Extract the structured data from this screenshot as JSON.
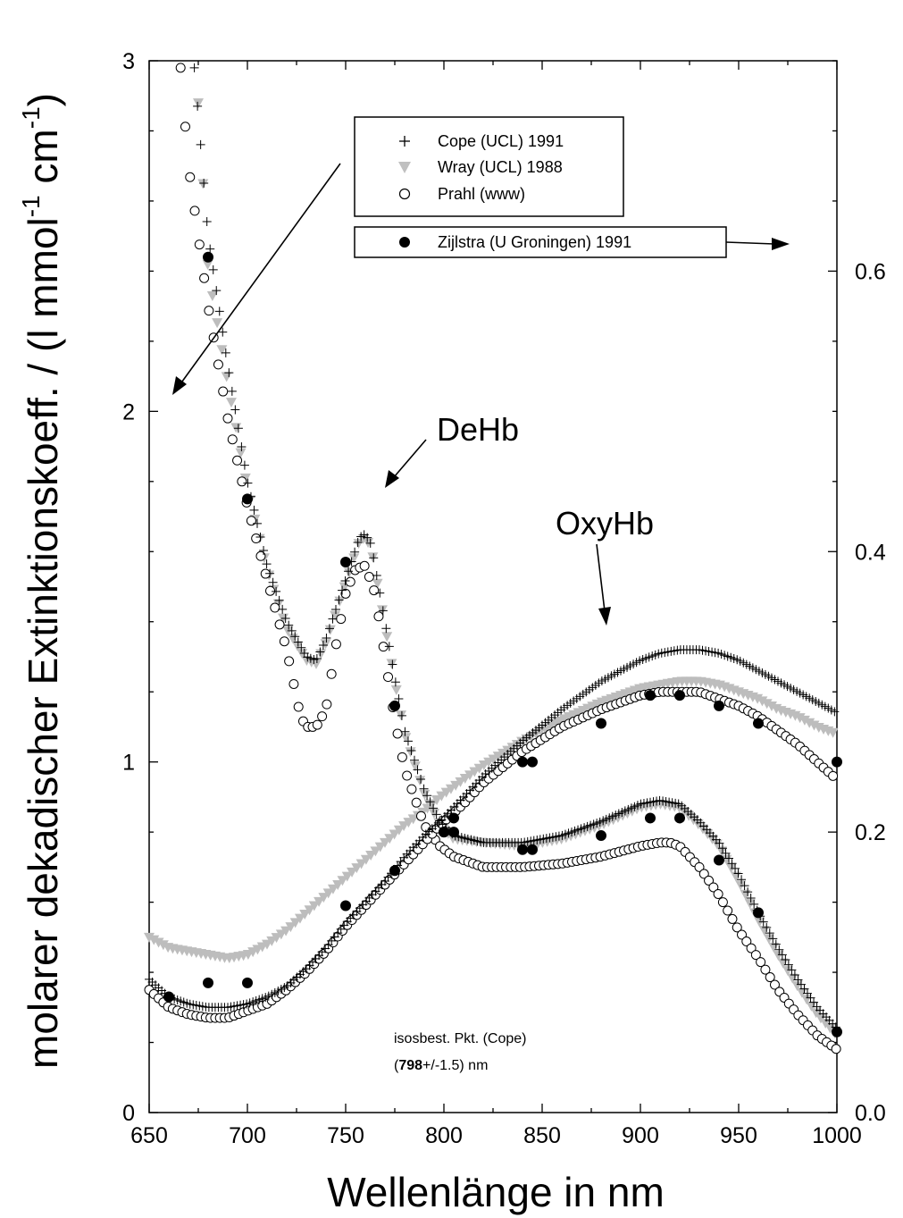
{
  "chart_data": {
    "type": "scatter",
    "xlabel": "Wellenlänge in nm",
    "ylabel_main": "molarer dekadischer Extinktionskoeff. / (l mmol",
    "ylabel_sup1": "-1",
    "ylabel_mid": " cm",
    "ylabel_sup2": "-1",
    "ylabel_end": ")",
    "xlim": [
      650,
      1000
    ],
    "ylim_left": [
      0,
      3
    ],
    "ylim_right": [
      0,
      0.75
    ],
    "x_ticks": [
      650,
      700,
      750,
      800,
      850,
      900,
      950,
      1000
    ],
    "x_tick_labels": [
      "650",
      "700",
      "750",
      "800",
      "850",
      "900",
      "950",
      "1000"
    ],
    "y_left_ticks": [
      0,
      1,
      2,
      3
    ],
    "y_left_tick_labels": [
      "0",
      "1",
      "2",
      "3"
    ],
    "y_right_ticks": [
      0.0,
      0.2,
      0.4,
      0.6
    ],
    "y_right_tick_labels": [
      "0.0",
      "0.2",
      "0.4",
      "0.6"
    ],
    "legend_left": [
      {
        "name": "Cope (UCL) 1991",
        "marker": "plus"
      },
      {
        "name": "Wray (UCL) 1988",
        "marker": "triangle"
      },
      {
        "name": "Prahl (www)",
        "marker": "circle"
      }
    ],
    "legend_right": [
      {
        "name": "Zijlstra (U Groningen) 1991",
        "marker": "filled-circle"
      }
    ],
    "annotations": {
      "dehb": "DeHb",
      "oxyhb": "OxyHb",
      "isos_line1": "isosbest. Pkt. (Cope)",
      "isos_line2_open": "(",
      "isos_line2_bold": "798",
      "isos_line2_rest": "+/-1.5) nm"
    },
    "series": [
      {
        "name": "Cope (UCL) 1991",
        "axis": "left",
        "marker": "plus",
        "curves": [
          {
            "label": "DeHb",
            "x": [
              673,
              680,
              690,
              700,
              710,
              720,
              730,
              735,
              740,
              750,
              757,
              760,
              763,
              770,
              775,
              780,
              790,
              798,
              805,
              820,
              840,
              860,
              880,
              900,
              910,
              920,
              930,
              940,
              950,
              960,
              970,
              980,
              990,
              1000
            ],
            "y": [
              2.98,
              2.5,
              2.13,
              1.8,
              1.56,
              1.4,
              1.3,
              1.29,
              1.35,
              1.52,
              1.64,
              1.65,
              1.62,
              1.4,
              1.24,
              1.09,
              0.92,
              0.83,
              0.79,
              0.77,
              0.77,
              0.79,
              0.83,
              0.88,
              0.89,
              0.88,
              0.83,
              0.77,
              0.68,
              0.57,
              0.47,
              0.38,
              0.3,
              0.24
            ]
          },
          {
            "label": "OxyHb",
            "x": [
              650,
              660,
              670,
              680,
              690,
              700,
              710,
              720,
              730,
              740,
              750,
              760,
              770,
              780,
              790,
              798,
              810,
              820,
              840,
              860,
              880,
              900,
              910,
              920,
              930,
              940,
              950,
              960,
              970,
              980,
              990,
              1000
            ],
            "y": [
              0.38,
              0.33,
              0.31,
              0.3,
              0.3,
              0.31,
              0.33,
              0.36,
              0.41,
              0.47,
              0.54,
              0.6,
              0.66,
              0.73,
              0.79,
              0.83,
              0.9,
              0.96,
              1.06,
              1.15,
              1.23,
              1.29,
              1.31,
              1.32,
              1.32,
              1.31,
              1.29,
              1.26,
              1.23,
              1.2,
              1.17,
              1.14
            ]
          }
        ]
      },
      {
        "name": "Wray (UCL) 1988",
        "axis": "left",
        "marker": "triangle",
        "curves": [
          {
            "label": "DeHb",
            "x": [
              675,
              680,
              690,
              700,
              710,
              720,
              730,
              735,
              740,
              750,
              757,
              760,
              763,
              770,
              775,
              780,
              790,
              798,
              805,
              820,
              840,
              860,
              880,
              900,
              910,
              920,
              930,
              940,
              950,
              960,
              970,
              980,
              990,
              1000
            ],
            "y": [
              2.88,
              2.4,
              2.08,
              1.78,
              1.55,
              1.38,
              1.29,
              1.28,
              1.34,
              1.51,
              1.63,
              1.64,
              1.61,
              1.39,
              1.23,
              1.08,
              0.91,
              0.82,
              0.78,
              0.77,
              0.76,
              0.78,
              0.82,
              0.87,
              0.88,
              0.87,
              0.82,
              0.76,
              0.66,
              0.55,
              0.45,
              0.36,
              0.28,
              0.22
            ]
          },
          {
            "label": "OxyHb",
            "x": [
              650,
              660,
              670,
              680,
              690,
              700,
              710,
              720,
              730,
              740,
              750,
              760,
              770,
              780,
              790,
              798,
              810,
              820,
              840,
              860,
              880,
              900,
              910,
              920,
              930,
              940,
              950,
              960,
              970,
              980,
              990,
              1000
            ],
            "y": [
              0.5,
              0.47,
              0.46,
              0.45,
              0.44,
              0.45,
              0.48,
              0.52,
              0.57,
              0.62,
              0.67,
              0.72,
              0.77,
              0.82,
              0.86,
              0.9,
              0.95,
              0.99,
              1.06,
              1.12,
              1.17,
              1.21,
              1.22,
              1.23,
              1.23,
              1.22,
              1.2,
              1.18,
              1.15,
              1.13,
              1.1,
              1.08
            ]
          }
        ]
      },
      {
        "name": "Prahl (www)",
        "axis": "left",
        "marker": "circle",
        "curves": [
          {
            "label": "DeHb",
            "x": [
              666,
              670,
              680,
              690,
              700,
              710,
              720,
              727,
              730,
              735,
              740,
              745,
              750,
              755,
              760,
              765,
              770,
              775,
              780,
              790,
              798,
              805,
              820,
              840,
              860,
              880,
              900,
              910,
              915,
              920,
              930,
              940,
              950,
              960,
              970,
              980,
              990,
              1000
            ],
            "y": [
              2.98,
              2.7,
              2.3,
              1.98,
              1.73,
              1.52,
              1.32,
              1.13,
              1.1,
              1.1,
              1.15,
              1.33,
              1.48,
              1.55,
              1.56,
              1.48,
              1.3,
              1.12,
              0.98,
              0.82,
              0.76,
              0.73,
              0.7,
              0.7,
              0.71,
              0.73,
              0.76,
              0.77,
              0.77,
              0.76,
              0.7,
              0.62,
              0.52,
              0.44,
              0.35,
              0.28,
              0.22,
              0.18
            ]
          },
          {
            "label": "OxyHb",
            "x": [
              650,
              660,
              670,
              680,
              690,
              700,
              710,
              720,
              730,
              740,
              750,
              760,
              770,
              780,
              790,
              798,
              810,
              820,
              840,
              860,
              880,
              900,
              910,
              920,
              930,
              940,
              950,
              960,
              970,
              980,
              990,
              1000
            ],
            "y": [
              0.35,
              0.3,
              0.28,
              0.27,
              0.27,
              0.29,
              0.31,
              0.35,
              0.4,
              0.46,
              0.53,
              0.59,
              0.65,
              0.71,
              0.77,
              0.82,
              0.88,
              0.94,
              1.03,
              1.1,
              1.15,
              1.19,
              1.2,
              1.2,
              1.2,
              1.18,
              1.16,
              1.13,
              1.09,
              1.05,
              1.0,
              0.95
            ]
          }
        ]
      },
      {
        "name": "Zijlstra (U Groningen) 1991",
        "axis": "right",
        "marker": "filled-circle",
        "curves": [
          {
            "label": "DeHb",
            "x": [
              680,
              700,
              750,
              775,
              800,
              805,
              840,
              845,
              880,
              905,
              920,
              940,
              960,
              1000
            ],
            "y": [
              0.61,
              0.4375,
              0.3925,
              0.29,
              0.2,
              0.2,
              0.1875,
              0.1875,
              0.1975,
              0.21,
              0.21,
              0.18,
              0.1425,
              0.0575
            ]
          },
          {
            "label": "OxyHb",
            "x": [
              660,
              680,
              700,
              750,
              775,
              800,
              805,
              840,
              845,
              880,
              905,
              920,
              940,
              960,
              1000
            ],
            "y": [
              0.0825,
              0.0925,
              0.0925,
              0.1475,
              0.1725,
              0.2,
              0.21,
              0.25,
              0.25,
              0.2775,
              0.2975,
              0.2975,
              0.29,
              0.2775,
              0.25
            ]
          }
        ]
      }
    ]
  }
}
